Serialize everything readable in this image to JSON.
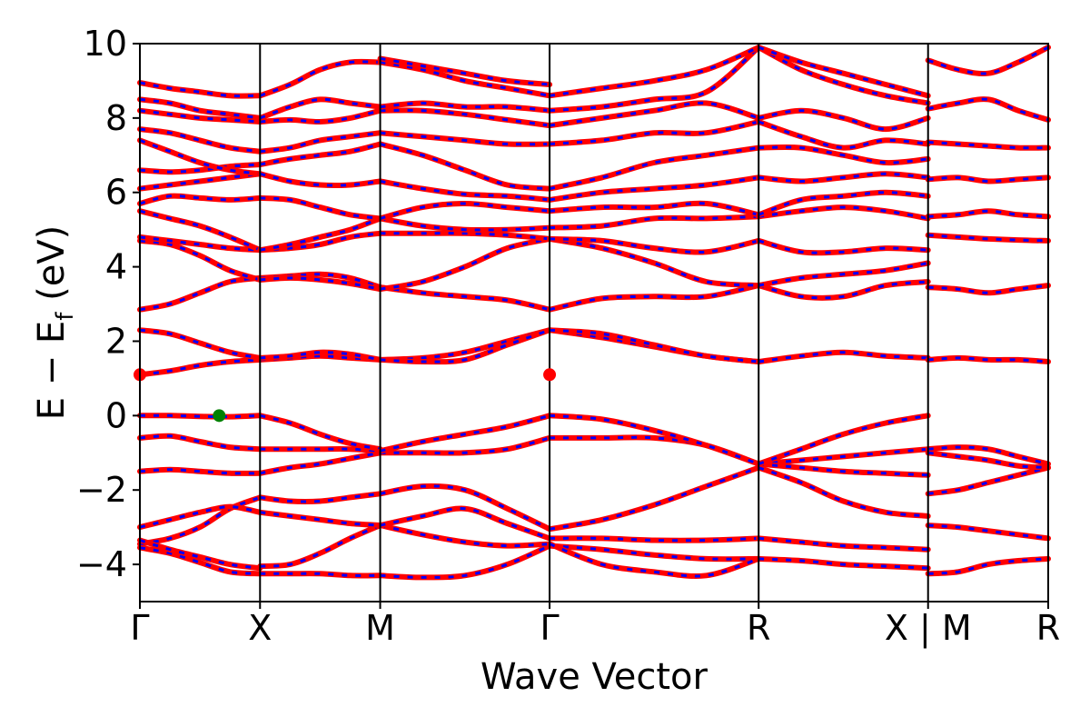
{
  "chart_data": {
    "type": "line",
    "xlabel": "Wave Vector",
    "ylabel_main": "E − E",
    "ylabel_sub": "f",
    "ylabel_unit": " (eV)",
    "ylim": [
      -5,
      10
    ],
    "yticks": [
      -4,
      -2,
      0,
      2,
      4,
      6,
      8,
      10
    ],
    "ytick_labels": [
      "−4",
      "−2",
      "0",
      "2",
      "4",
      "6",
      "8",
      "10"
    ],
    "xlim": [
      0,
      7.56
    ],
    "kpoints": [
      {
        "label": "Γ",
        "x": 0.0
      },
      {
        "label": "X",
        "x": 1.0
      },
      {
        "label": "M",
        "x": 2.0
      },
      {
        "label": "Γ",
        "x": 3.41
      },
      {
        "label": "R",
        "x": 5.15
      },
      {
        "label": "X | M",
        "x": 6.56
      },
      {
        "label": "R",
        "x": 7.56
      }
    ],
    "segments": [
      {
        "from": 0.0,
        "to": 1.0,
        "bands": [
          [
            -3.55,
            -3.7,
            -3.95,
            -4.2,
            -4.25
          ],
          [
            -3.45,
            -3.3,
            -3.0,
            -2.5,
            -2.2
          ],
          [
            -3.35,
            -3.6,
            -3.8,
            -4.0,
            -4.1
          ],
          [
            -3.0,
            -2.8,
            -2.6,
            -2.45,
            -2.6
          ],
          [
            -1.5,
            -1.45,
            -1.5,
            -1.55,
            -1.55
          ],
          [
            -0.6,
            -0.55,
            -0.7,
            -0.85,
            -0.9
          ],
          [
            0.0,
            0.0,
            -0.02,
            -0.03,
            0.0
          ],
          [
            1.1,
            1.2,
            1.35,
            1.45,
            1.5
          ],
          [
            2.3,
            2.2,
            1.95,
            1.7,
            1.55
          ],
          [
            2.85,
            3.0,
            3.3,
            3.6,
            3.7
          ],
          [
            4.7,
            4.6,
            4.3,
            3.9,
            3.65
          ],
          [
            4.8,
            4.7,
            4.6,
            4.5,
            4.45
          ],
          [
            5.5,
            5.3,
            5.1,
            4.8,
            4.45
          ],
          [
            5.7,
            5.9,
            5.85,
            5.8,
            5.85
          ],
          [
            6.1,
            6.2,
            6.3,
            6.4,
            6.5
          ],
          [
            6.6,
            6.55,
            6.6,
            6.7,
            6.75
          ],
          [
            7.4,
            7.1,
            6.8,
            6.6,
            6.5
          ],
          [
            7.7,
            7.6,
            7.4,
            7.2,
            7.1
          ],
          [
            8.2,
            8.1,
            8.0,
            7.95,
            7.9
          ],
          [
            8.5,
            8.4,
            8.2,
            8.1,
            8.0
          ],
          [
            8.95,
            8.8,
            8.7,
            8.6,
            8.6
          ]
        ]
      },
      {
        "from": 1.0,
        "to": 2.0,
        "bands": [
          [
            -4.25,
            -4.25,
            -4.25,
            -4.3,
            -4.3
          ],
          [
            -4.05,
            -4.0,
            -3.7,
            -3.3,
            -2.95
          ],
          [
            -2.6,
            -2.7,
            -2.8,
            -2.9,
            -2.95
          ],
          [
            -2.2,
            -2.3,
            -2.3,
            -2.2,
            -2.1
          ],
          [
            -1.55,
            -1.4,
            -1.3,
            -1.15,
            -1.0
          ],
          [
            -0.9,
            -0.9,
            -0.9,
            -0.9,
            -0.95
          ],
          [
            0.0,
            -0.2,
            -0.5,
            -0.75,
            -0.9
          ],
          [
            1.5,
            1.55,
            1.6,
            1.55,
            1.5
          ],
          [
            1.55,
            1.6,
            1.7,
            1.65,
            1.5
          ],
          [
            3.7,
            3.75,
            3.8,
            3.7,
            3.45
          ],
          [
            3.65,
            3.7,
            3.65,
            3.55,
            3.4
          ],
          [
            4.45,
            4.5,
            4.6,
            4.8,
            4.9
          ],
          [
            4.45,
            4.6,
            4.8,
            5.0,
            5.3
          ],
          [
            5.85,
            5.8,
            5.6,
            5.4,
            5.3
          ],
          [
            6.5,
            6.3,
            6.2,
            6.2,
            6.3
          ],
          [
            6.75,
            6.9,
            7.0,
            7.1,
            7.3
          ],
          [
            7.1,
            7.2,
            7.4,
            7.5,
            7.6
          ],
          [
            7.9,
            7.95,
            7.9,
            8.0,
            8.2
          ],
          [
            8.0,
            8.3,
            8.5,
            8.4,
            8.3
          ],
          [
            8.6,
            8.9,
            9.3,
            9.5,
            9.5
          ]
        ]
      },
      {
        "from": 2.0,
        "to": 3.41,
        "bands": [
          [
            -4.3,
            -4.35,
            -4.3,
            -4.0,
            -3.5
          ],
          [
            -2.95,
            -3.2,
            -3.4,
            -3.5,
            -3.45
          ],
          [
            -2.95,
            -2.7,
            -2.5,
            -2.9,
            -3.3
          ],
          [
            -2.1,
            -1.9,
            -2.0,
            -2.5,
            -3.05
          ],
          [
            -1.0,
            -1.0,
            -1.0,
            -0.9,
            -0.6
          ],
          [
            -0.95,
            -0.7,
            -0.5,
            -0.3,
            0.0
          ],
          [
            1.5,
            1.55,
            1.7,
            2.0,
            2.3
          ],
          [
            1.5,
            1.45,
            1.5,
            1.9,
            2.3
          ],
          [
            3.45,
            3.3,
            3.2,
            3.1,
            2.85
          ],
          [
            3.4,
            3.6,
            4.0,
            4.5,
            4.75
          ],
          [
            4.9,
            4.9,
            4.9,
            4.85,
            4.75
          ],
          [
            5.3,
            5.1,
            5.0,
            5.0,
            5.05
          ],
          [
            5.3,
            5.6,
            5.7,
            5.6,
            5.5
          ],
          [
            6.3,
            6.1,
            5.95,
            5.9,
            5.8
          ],
          [
            7.3,
            7.0,
            6.6,
            6.2,
            6.1
          ],
          [
            7.6,
            7.5,
            7.4,
            7.3,
            7.3
          ],
          [
            8.2,
            8.2,
            8.1,
            7.95,
            7.8
          ],
          [
            8.3,
            8.4,
            8.3,
            8.3,
            8.2
          ],
          [
            9.5,
            9.3,
            9.0,
            8.8,
            8.6
          ],
          [
            9.6,
            9.4,
            9.2,
            9.0,
            8.9
          ]
        ]
      },
      {
        "from": 3.41,
        "to": 5.15,
        "bands": [
          [
            -3.5,
            -3.6,
            -3.75,
            -3.85,
            -3.85
          ],
          [
            -3.45,
            -4.0,
            -4.2,
            -4.3,
            -3.85
          ],
          [
            -3.3,
            -3.3,
            -3.35,
            -3.35,
            -3.3
          ],
          [
            -3.05,
            -2.8,
            -2.4,
            -1.9,
            -1.4
          ],
          [
            -0.6,
            -0.6,
            -0.6,
            -0.8,
            -1.3
          ],
          [
            0.0,
            -0.1,
            -0.4,
            -0.8,
            -1.3
          ],
          [
            2.3,
            2.1,
            1.85,
            1.6,
            1.45
          ],
          [
            2.3,
            2.2,
            1.9,
            1.6,
            1.45
          ],
          [
            2.85,
            3.15,
            3.2,
            3.2,
            3.5
          ],
          [
            4.75,
            4.5,
            4.1,
            3.6,
            3.5
          ],
          [
            4.75,
            4.7,
            4.5,
            4.4,
            4.7
          ],
          [
            5.05,
            5.1,
            5.3,
            5.3,
            5.35
          ],
          [
            5.5,
            5.6,
            5.6,
            5.7,
            5.4
          ],
          [
            5.8,
            6.0,
            6.1,
            6.2,
            6.4
          ],
          [
            6.1,
            6.4,
            6.8,
            7.0,
            7.2
          ],
          [
            7.3,
            7.4,
            7.6,
            7.6,
            7.9
          ],
          [
            7.8,
            8.0,
            8.2,
            8.4,
            8.0
          ],
          [
            8.2,
            8.3,
            8.5,
            8.7,
            9.9
          ],
          [
            8.6,
            8.8,
            9.0,
            9.3,
            9.9
          ]
        ]
      },
      {
        "from": 5.15,
        "to": 6.56,
        "bands": [
          [
            -3.85,
            -3.9,
            -4.0,
            -4.05,
            -4.1
          ],
          [
            -3.3,
            -3.4,
            -3.5,
            -3.55,
            -3.6
          ],
          [
            -1.4,
            -1.8,
            -2.3,
            -2.6,
            -2.7
          ],
          [
            -1.3,
            -1.2,
            -1.1,
            -1.0,
            -0.9
          ],
          [
            -1.3,
            -1.4,
            -1.5,
            -1.55,
            -1.6
          ],
          [
            -1.3,
            -0.9,
            -0.5,
            -0.2,
            0.0
          ],
          [
            1.45,
            1.6,
            1.7,
            1.6,
            1.55
          ],
          [
            3.5,
            3.2,
            3.2,
            3.5,
            3.6
          ],
          [
            3.5,
            3.7,
            3.8,
            3.9,
            4.1
          ],
          [
            4.7,
            4.4,
            4.4,
            4.5,
            4.45
          ],
          [
            5.35,
            5.5,
            5.6,
            5.5,
            5.3
          ],
          [
            5.4,
            5.8,
            5.9,
            6.0,
            5.9
          ],
          [
            6.4,
            6.3,
            6.4,
            6.5,
            6.4
          ],
          [
            7.2,
            7.2,
            7.0,
            6.8,
            6.9
          ],
          [
            7.9,
            7.5,
            7.2,
            7.4,
            7.3
          ],
          [
            8.0,
            8.2,
            8.0,
            7.7,
            8.0
          ],
          [
            9.9,
            9.3,
            8.9,
            8.6,
            8.4
          ],
          [
            9.9,
            9.5,
            9.2,
            8.9,
            8.6
          ]
        ]
      },
      {
        "from": 6.56,
        "to": 7.56,
        "bands": [
          [
            -4.25,
            -4.2,
            -4.0,
            -3.9,
            -3.85
          ],
          [
            -2.95,
            -3.0,
            -3.1,
            -3.2,
            -3.3
          ],
          [
            -2.1,
            -2.0,
            -1.8,
            -1.6,
            -1.4
          ],
          [
            -0.9,
            -0.85,
            -0.9,
            -1.1,
            -1.3
          ],
          [
            -1.0,
            -1.1,
            -1.2,
            -1.35,
            -1.4
          ],
          [
            1.5,
            1.55,
            1.5,
            1.5,
            1.45
          ],
          [
            3.45,
            3.4,
            3.3,
            3.4,
            3.5
          ],
          [
            4.85,
            4.8,
            4.75,
            4.72,
            4.7
          ],
          [
            5.35,
            5.4,
            5.5,
            5.4,
            5.35
          ],
          [
            6.35,
            6.4,
            6.3,
            6.35,
            6.4
          ],
          [
            7.35,
            7.3,
            7.25,
            7.2,
            7.2
          ],
          [
            8.25,
            8.4,
            8.5,
            8.2,
            7.95
          ],
          [
            9.55,
            9.3,
            9.2,
            9.5,
            9.9
          ]
        ]
      }
    ],
    "markers": [
      {
        "label_role": "cbm",
        "x": 0.0,
        "y": 1.1,
        "color": "#ff0000"
      },
      {
        "label_role": "cbm",
        "x": 3.41,
        "y": 1.1,
        "color": "#ff0000"
      },
      {
        "label_role": "vbm",
        "x": 0.66,
        "y": 0.0,
        "color": "#008000"
      }
    ],
    "colors": {
      "band_solid": "#ff0000",
      "band_dashed": "#0000ff",
      "axis": "#000000"
    }
  }
}
